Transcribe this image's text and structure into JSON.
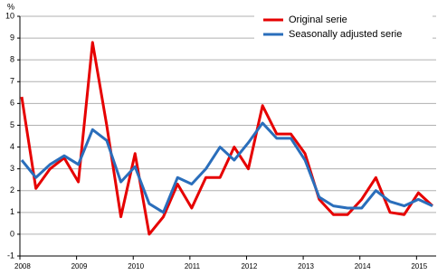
{
  "chart_data": {
    "type": "line",
    "y_label": "%",
    "categories": [
      "2008",
      null,
      null,
      null,
      "2009",
      null,
      null,
      null,
      "2010",
      null,
      null,
      null,
      "2011",
      null,
      null,
      null,
      "2012",
      null,
      null,
      null,
      "2013",
      null,
      null,
      null,
      "2014",
      null,
      null,
      null,
      "2015",
      null
    ],
    "series": [
      {
        "name": "Original serie",
        "color": "#e60000",
        "values": [
          6.3,
          2.1,
          3.0,
          3.5,
          2.4,
          8.8,
          5.0,
          0.8,
          3.7,
          0.0,
          0.8,
          2.3,
          1.2,
          2.6,
          2.6,
          4.0,
          3.0,
          5.9,
          4.6,
          4.6,
          3.7,
          1.6,
          0.9,
          0.9,
          1.6,
          2.6,
          1.0,
          0.9,
          1.9,
          1.3
        ]
      },
      {
        "name": "Seasonally adjusted serie",
        "color": "#2a6ebb",
        "values": [
          3.4,
          2.6,
          3.2,
          3.6,
          3.2,
          4.8,
          4.3,
          2.4,
          3.1,
          1.4,
          1.0,
          2.6,
          2.3,
          3.0,
          4.0,
          3.4,
          4.2,
          5.1,
          4.4,
          4.4,
          3.4,
          1.7,
          1.3,
          1.2,
          1.2,
          2.0,
          1.5,
          1.3,
          1.6,
          1.3
        ]
      }
    ],
    "ylim": [
      -1,
      10
    ],
    "yticks": [
      -1,
      0,
      1,
      2,
      3,
      4,
      5,
      6,
      7,
      8,
      9,
      10
    ],
    "grid": true,
    "legend": "upper right"
  }
}
